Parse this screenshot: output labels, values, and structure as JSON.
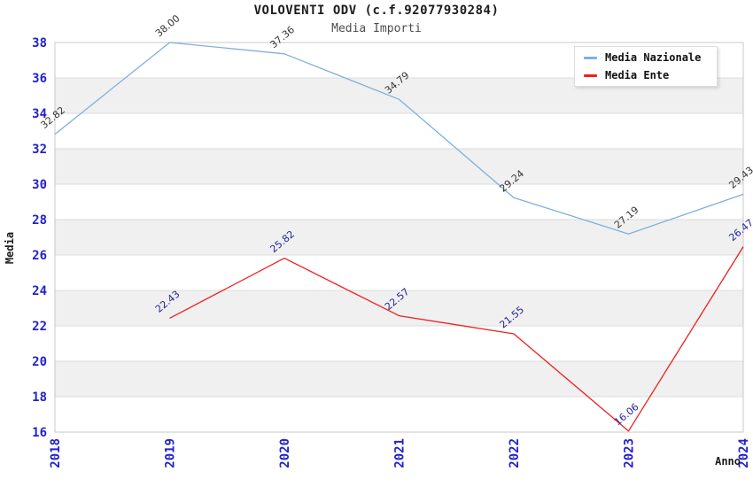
{
  "page": {
    "background_color": "#ffffff",
    "band_color": "#f0f0f0",
    "gridline_color": "#dcdcdc",
    "frame_color": "#c8c8c8",
    "axis_tick_color": "#2222cc"
  },
  "chart_data": {
    "type": "line",
    "title": "VOLOVENTI ODV (c.f.92077930284)",
    "subtitle": "Media Importi",
    "xlabel": "Anno",
    "ylabel": "Media",
    "categories": [
      "2018",
      "2019",
      "2020",
      "2021",
      "2022",
      "2023",
      "2024"
    ],
    "ylim": [
      16,
      38
    ],
    "ytick_step": 2,
    "grid": "horizontal-bands",
    "legend_position": "top-right",
    "series": [
      {
        "name": "Media Nazionale",
        "color": "#7fb0e0",
        "label_color": "#333333",
        "categories": [
          "2018",
          "2019",
          "2020",
          "2021",
          "2022",
          "2023",
          "2024"
        ],
        "values": [
          32.82,
          38.0,
          37.36,
          34.79,
          29.24,
          27.19,
          29.43
        ],
        "value_labels": [
          "32.82",
          "38.00",
          "37.36",
          "34.79",
          "29.24",
          "27.19",
          "29.43"
        ]
      },
      {
        "name": "Media Ente",
        "color": "#ee2020",
        "label_color": "#222299",
        "categories": [
          "2019",
          "2020",
          "2021",
          "2022",
          "2023",
          "2024"
        ],
        "values": [
          22.43,
          25.82,
          22.57,
          21.55,
          16.06,
          26.47
        ],
        "value_labels": [
          "22.43",
          "25.82",
          "22.57",
          "21.55",
          "16.06",
          "26.47"
        ]
      }
    ]
  }
}
